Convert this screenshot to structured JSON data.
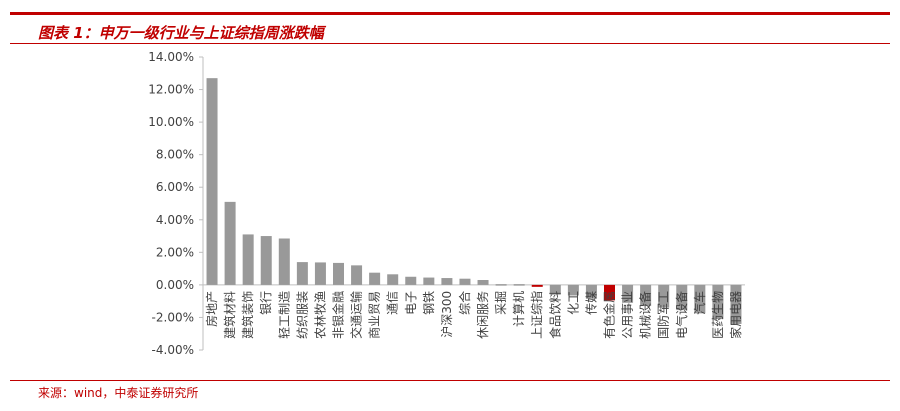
{
  "header": {
    "title": "图表 1：申万一级行业与上证综指周涨跌幅"
  },
  "footer": {
    "source": "来源：wind，中泰证券研究所"
  },
  "colors": {
    "accent": "#c00000",
    "bar_default": "#999999",
    "bar_highlight": "#c00000"
  },
  "chart_data": {
    "type": "bar",
    "categories": [
      "房地产",
      "建筑材料",
      "建筑装饰",
      "银行",
      "轻工制造",
      "纺织服装",
      "农林牧渔",
      "非银金融",
      "交通运输",
      "商业贸易",
      "通信",
      "电子",
      "钢铁",
      "沪深300",
      "综合",
      "休闲服务",
      "采掘",
      "计算机",
      "上证综指",
      "食品饮料",
      "化工",
      "传媒",
      "有色金属",
      "公用事业",
      "机械设备",
      "国防军工",
      "电气设备",
      "汽车",
      "医药生物",
      "家用电器"
    ],
    "values": [
      12.7,
      5.1,
      3.1,
      3.0,
      2.85,
      1.4,
      1.38,
      1.35,
      1.2,
      0.75,
      0.65,
      0.5,
      0.45,
      0.42,
      0.38,
      0.3,
      0.0,
      -0.08,
      -0.12,
      -0.6,
      -0.65,
      -0.85,
      -0.95,
      -1.1,
      -1.3,
      -1.4,
      -1.55,
      -1.75,
      -2.1,
      -2.4
    ],
    "highlight": [
      "上证综指",
      "有色金属"
    ],
    "ylim": [
      -4,
      14
    ],
    "yticks": [
      "14.00%",
      "12.00%",
      "10.00%",
      "8.00%",
      "6.00%",
      "4.00%",
      "2.00%",
      "0.00%",
      "-2.00%",
      "-4.00%"
    ],
    "ytick_values": [
      14,
      12,
      10,
      8,
      6,
      4,
      2,
      0,
      -2,
      -4
    ],
    "xlabel": "",
    "ylabel": "",
    "grid": false
  }
}
